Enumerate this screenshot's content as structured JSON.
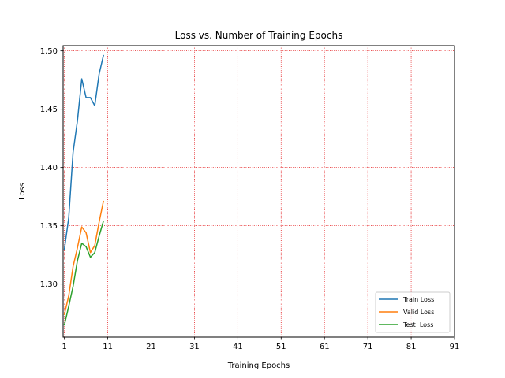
{
  "chart_data": {
    "type": "line",
    "title": "Loss vs. Number of Training Epochs",
    "xlabel": "Training Epochs",
    "ylabel": "Loss",
    "xlim": [
      0.7,
      91
    ],
    "ylim": [
      1.2545,
      1.5045
    ],
    "xticks": [
      1,
      11,
      21,
      31,
      41,
      51,
      61,
      71,
      81,
      91
    ],
    "yticks": [
      1.3,
      1.35,
      1.4,
      1.45,
      1.5
    ],
    "ytick_labels": [
      "1.30",
      "1.35",
      "1.40",
      "1.45",
      "1.50"
    ],
    "grid": {
      "on": true,
      "color": "#e41a1c",
      "style": "dotted"
    },
    "legend": {
      "location": "lower right"
    },
    "x": [
      1,
      2,
      3,
      4,
      5,
      6,
      7,
      8,
      9,
      10
    ],
    "series": [
      {
        "name": "Train Loss",
        "color": "#1f77b4",
        "values": [
          1.33,
          1.357,
          1.413,
          1.44,
          1.476,
          1.46,
          1.46,
          1.453,
          1.48,
          1.496
        ]
      },
      {
        "name": "Valid Loss",
        "color": "#ff7f0e",
        "values": [
          1.274,
          1.29,
          1.315,
          1.331,
          1.349,
          1.344,
          1.327,
          1.333,
          1.353,
          1.371
        ]
      },
      {
        "name": "Test  Loss",
        "color": "#2ca02c",
        "values": [
          1.265,
          1.281,
          1.298,
          1.32,
          1.335,
          1.332,
          1.323,
          1.327,
          1.341,
          1.354
        ]
      }
    ]
  }
}
